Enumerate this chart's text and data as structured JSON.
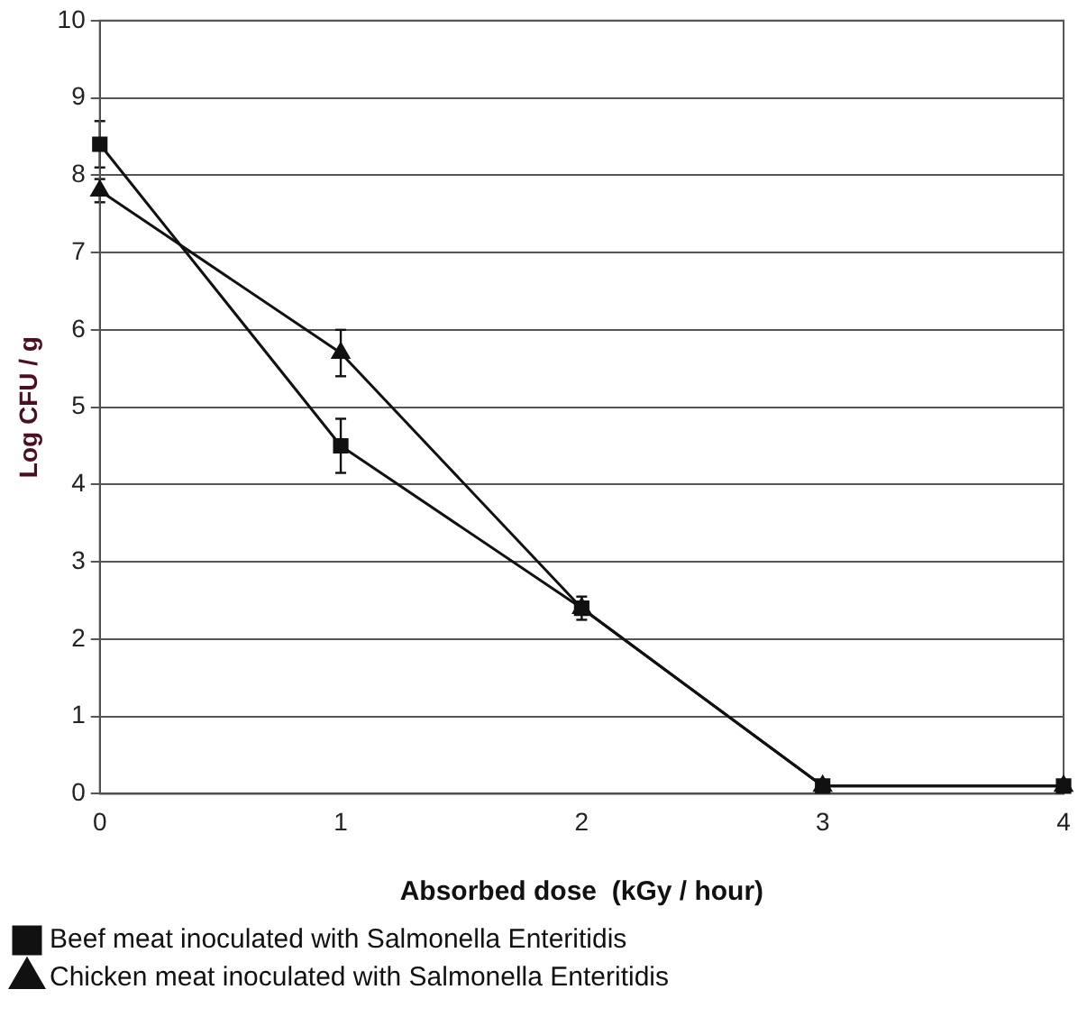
{
  "chart_data": {
    "type": "line",
    "xlabel": "Absorbed dose  (kGy / hour)",
    "ylabel": "Log CFU / g",
    "x": [
      0,
      1,
      2,
      3,
      4
    ],
    "xlim": [
      0,
      4
    ],
    "xticks": [
      0,
      1,
      2,
      3,
      4
    ],
    "ylim": [
      0,
      10
    ],
    "yticks": [
      0,
      1,
      2,
      3,
      4,
      5,
      6,
      7,
      8,
      9,
      10
    ],
    "grid": "y",
    "legend": "bottom",
    "series": [
      {
        "name": "Beef meat inoculated with Salmonella Enteritidis",
        "color": "#111111",
        "marker": "square",
        "values": [
          8.4,
          4.5,
          2.4,
          0.1,
          0.1
        ],
        "errors": [
          0.3,
          0.35,
          0.15,
          null,
          null
        ]
      },
      {
        "name": "Chicken meat inoculated with Salmonella Enteritidis",
        "color": "#111111",
        "marker": "triangle",
        "values": [
          7.8,
          5.7,
          2.4,
          0.1,
          0.1
        ],
        "errors": [
          0.15,
          0.3,
          null,
          null,
          null
        ]
      }
    ]
  }
}
